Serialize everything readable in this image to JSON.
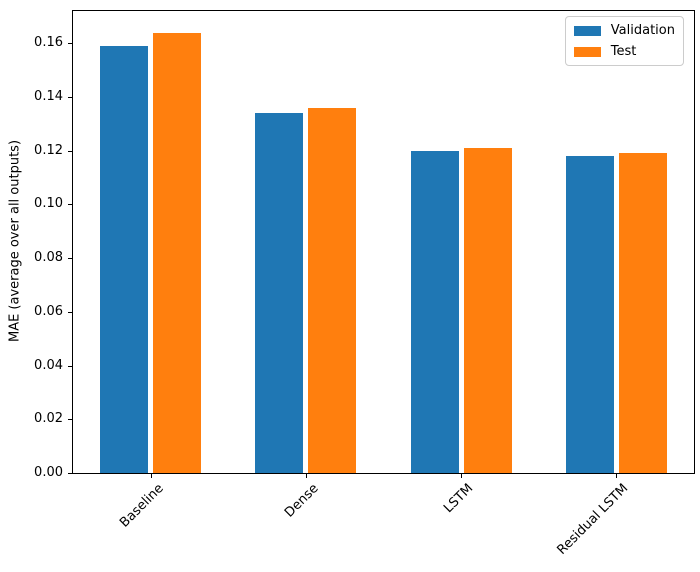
{
  "figure": {
    "background": "#ffffff"
  },
  "chart_data": {
    "type": "bar",
    "title": "",
    "xlabel": "",
    "ylabel": "MAE (average over all outputs)",
    "categories": [
      "Baseline",
      "Dense",
      "LSTM",
      "Residual LSTM"
    ],
    "series": [
      {
        "name": "Validation",
        "color": "#1f77b4",
        "values": [
          0.159,
          0.134,
          0.12,
          0.118
        ]
      },
      {
        "name": "Test",
        "color": "#ff7f0e",
        "values": [
          0.164,
          0.136,
          0.121,
          0.119
        ]
      }
    ],
    "ylim": [
      0,
      0.172
    ],
    "yticks": [
      0,
      0.02,
      0.04,
      0.06,
      0.08,
      0.1,
      0.12,
      0.14,
      0.16
    ],
    "ytick_labels": [
      "0.00",
      "0.02",
      "0.04",
      "0.06",
      "0.08",
      "0.10",
      "0.12",
      "0.14",
      "0.16"
    ],
    "x_tick_rotation_deg": 45,
    "grid": false,
    "legend": {
      "position": "upper right",
      "entries": [
        "Validation",
        "Test"
      ]
    },
    "axis_color": "#000000",
    "legend_border_color": "#cccccc"
  }
}
